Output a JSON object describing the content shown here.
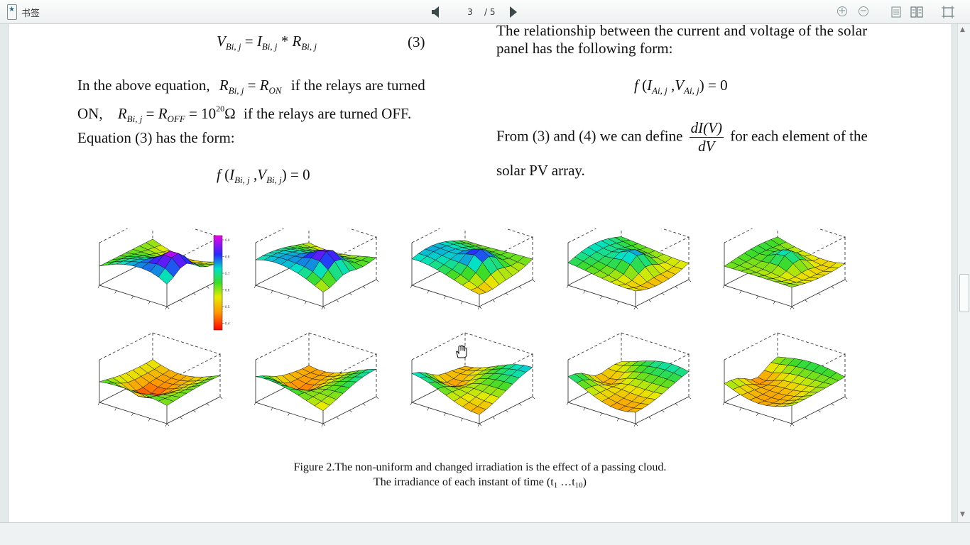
{
  "toolbar": {
    "bookmark_label": "书签",
    "page_current": "3",
    "page_total": "/ 5"
  },
  "left_column": {
    "eq1_V": "V",
    "eq1_sub": "Bi, j",
    "eq1_equals": " = ",
    "eq1_I": "I",
    "eq1_I_sub": "Bi, j",
    "eq1_star": " * ",
    "eq1_R": "R",
    "eq1_R_sub": "Bi, j",
    "eq1_number": "(3)",
    "line1_pre": "In  the  above  equation,",
    "line1_R": "R",
    "line1_R_sub": "Bi, j",
    "line1_eq": " = ",
    "line1_Ron": "R",
    "line1_Ron_sub": "ON",
    "line1_post": "if  the  relays  are  turned",
    "line2_pre": "ON,",
    "line2_R": "R",
    "line2_R_sub": "Bi, j",
    "line2_eq": " = ",
    "line2_Roff": "R",
    "line2_Roff_sub": "OFF",
    "line2_val": " = 10",
    "line2_exp": "20",
    "line2_ohm": "Ω",
    "line2_post": "if the relays are turned OFF.",
    "line3": "Equation (3) has the form:",
    "eq2_f": "f",
    "eq2_open": " (",
    "eq2_I": "I",
    "eq2_I_sub": "Bi, j",
    "eq2_comma": " ,",
    "eq2_V": "V",
    "eq2_V_sub": "Bi, j",
    "eq2_close": ") = 0"
  },
  "right_column": {
    "line1": "The relationship between the current and voltage of the solar",
    "line2": "panel has the following form:",
    "eq_f": "f",
    "eq_open": " (",
    "eq_I": "I",
    "eq_I_sub": "Ai, j",
    "eq_comma": " ,",
    "eq_V": "V",
    "eq_V_sub": "Ai, j",
    "eq_close": ") = 0",
    "line3_pre": "From (3) and (4) we can define",
    "frac_num": "dI(V)",
    "frac_den": "dV",
    "line3_post": "for each element of the",
    "line4": "solar PV array."
  },
  "figure": {
    "caption_line1": "Figure 2.The non-uniform and changed irradiation is the effect of a passing cloud.",
    "caption_line2_pre": "The irradiance of each instant of time (t",
    "caption_sub1": "1",
    "caption_mid": " …t",
    "caption_sub2": "10",
    "caption_close": ")",
    "colorbar_ticks": [
      "0.9",
      "0.8",
      "0.7",
      "0.6",
      "0.5",
      "0.4"
    ]
  }
}
